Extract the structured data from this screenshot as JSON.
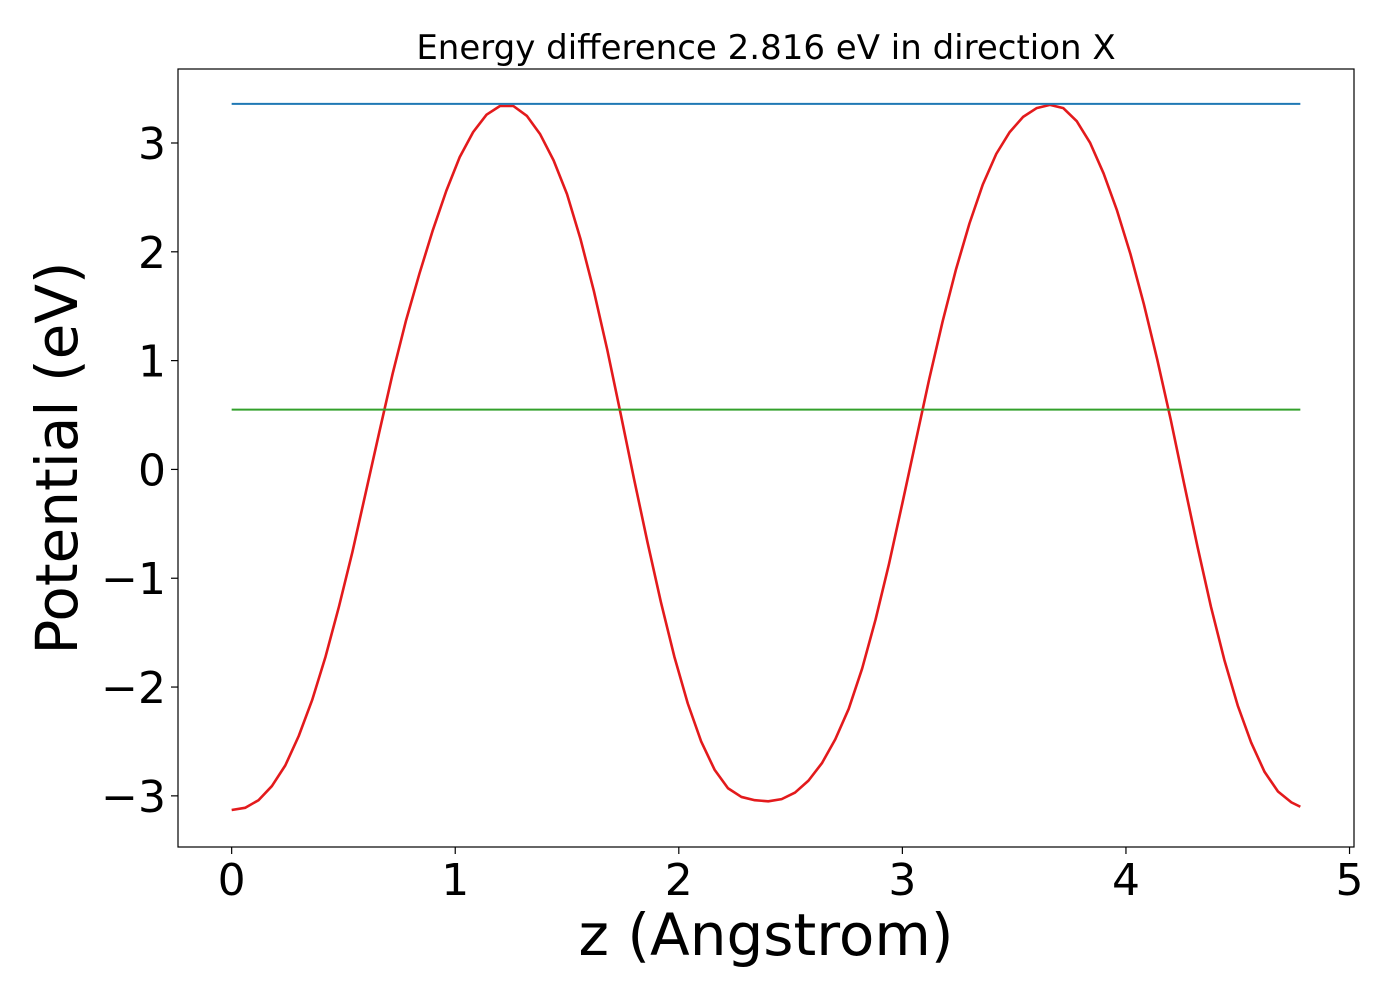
{
  "chart_data": {
    "type": "line",
    "title": "Energy difference 2.816 eV in direction X",
    "xlabel": "z (Angstrom)",
    "ylabel": "Potential (eV)",
    "xlim": [
      -0.24,
      5.02
    ],
    "ylim": [
      -3.47,
      3.68
    ],
    "xticks": [
      0,
      1,
      2,
      3,
      4,
      5
    ],
    "xtick_labels": [
      "0",
      "1",
      "2",
      "3",
      "4",
      "5"
    ],
    "yticks": [
      -3,
      -2,
      -1,
      0,
      1,
      2,
      3
    ],
    "ytick_labels": [
      "−3",
      "−2",
      "−1",
      "0",
      "1",
      "2",
      "3"
    ],
    "grid": false,
    "series": [
      {
        "color": "#e31a1c",
        "x": [
          0.0,
          0.06,
          0.12,
          0.18,
          0.24,
          0.3,
          0.36,
          0.42,
          0.48,
          0.54,
          0.6,
          0.66,
          0.72,
          0.78,
          0.84,
          0.9,
          0.96,
          1.02,
          1.08,
          1.14,
          1.2,
          1.26,
          1.32,
          1.38,
          1.44,
          1.5,
          1.56,
          1.62,
          1.68,
          1.74,
          1.8,
          1.86,
          1.92,
          1.98,
          2.04,
          2.1,
          2.16,
          2.22,
          2.28,
          2.34,
          2.4,
          2.46,
          2.52,
          2.58,
          2.64,
          2.7,
          2.76,
          2.82,
          2.88,
          2.94,
          3.0,
          3.06,
          3.12,
          3.18,
          3.24,
          3.3,
          3.36,
          3.42,
          3.48,
          3.54,
          3.6,
          3.66,
          3.72,
          3.78,
          3.84,
          3.9,
          3.96,
          4.02,
          4.08,
          4.14,
          4.2,
          4.26,
          4.32,
          4.38,
          4.44,
          4.5,
          4.56,
          4.62,
          4.68,
          4.74,
          4.78
        ],
        "y": [
          -3.13,
          -3.11,
          -3.04,
          -2.91,
          -2.72,
          -2.45,
          -2.12,
          -1.72,
          -1.26,
          -0.76,
          -0.21,
          0.34,
          0.88,
          1.37,
          1.8,
          2.2,
          2.56,
          2.87,
          3.1,
          3.26,
          3.34,
          3.34,
          3.25,
          3.08,
          2.84,
          2.53,
          2.12,
          1.64,
          1.1,
          0.51,
          -0.09,
          -0.67,
          -1.22,
          -1.72,
          -2.15,
          -2.5,
          -2.76,
          -2.93,
          -3.01,
          -3.04,
          -3.05,
          -3.03,
          -2.97,
          -2.86,
          -2.7,
          -2.48,
          -2.2,
          -1.83,
          -1.38,
          -0.87,
          -0.31,
          0.26,
          0.83,
          1.36,
          1.84,
          2.26,
          2.62,
          2.9,
          3.1,
          3.24,
          3.32,
          3.35,
          3.32,
          3.2,
          3.0,
          2.72,
          2.38,
          1.98,
          1.52,
          1.01,
          0.46,
          -0.13,
          -0.71,
          -1.26,
          -1.75,
          -2.17,
          -2.51,
          -2.78,
          -2.96,
          -3.06,
          -3.1
        ]
      },
      {
        "color": "#1f78b4",
        "x": [
          0.0,
          4.78
        ],
        "y": [
          3.36,
          3.36
        ]
      },
      {
        "color": "#33a02c",
        "x": [
          0.0,
          4.78
        ],
        "y": [
          0.55,
          0.55
        ]
      }
    ]
  }
}
